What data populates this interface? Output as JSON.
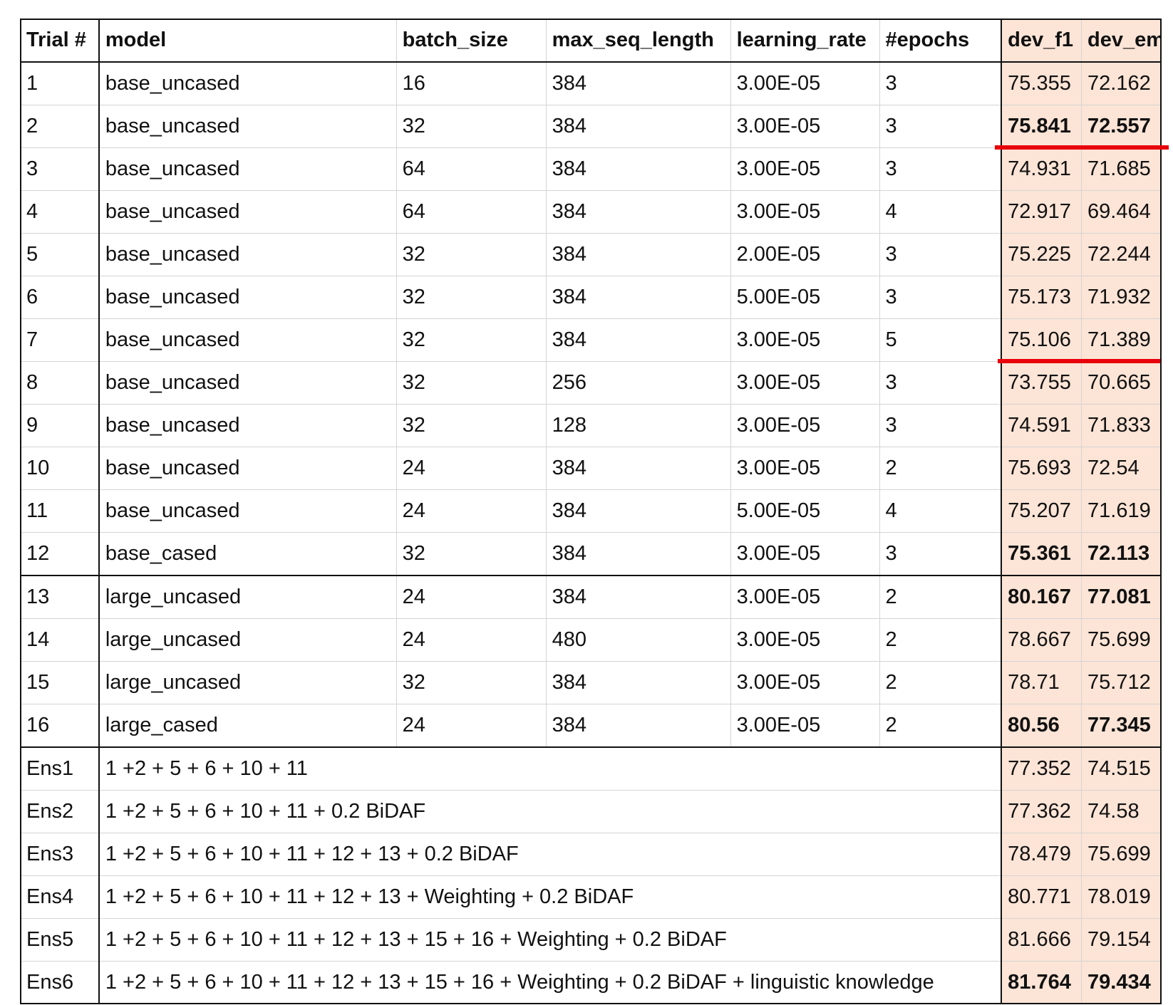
{
  "table": {
    "headers": [
      "Trial #",
      "model",
      "batch_size",
      "max_seq_length",
      "learning_rate",
      "#epochs",
      "dev_f1",
      "dev_em"
    ],
    "rows": [
      {
        "trial": "1",
        "model": "base_uncased",
        "batch_size": "16",
        "max_seq_length": "384",
        "learning_rate": "3.00E-05",
        "epochs": "3",
        "dev_f1": "75.355",
        "dev_em": "72.162",
        "bold": false
      },
      {
        "trial": "2",
        "model": "base_uncased",
        "batch_size": "32",
        "max_seq_length": "384",
        "learning_rate": "3.00E-05",
        "epochs": "3",
        "dev_f1": "75.841",
        "dev_em": "72.557",
        "bold": true
      },
      {
        "trial": "3",
        "model": "base_uncased",
        "batch_size": "64",
        "max_seq_length": "384",
        "learning_rate": "3.00E-05",
        "epochs": "3",
        "dev_f1": "74.931",
        "dev_em": "71.685",
        "bold": false
      },
      {
        "trial": "4",
        "model": "base_uncased",
        "batch_size": "64",
        "max_seq_length": "384",
        "learning_rate": "3.00E-05",
        "epochs": "4",
        "dev_f1": "72.917",
        "dev_em": "69.464",
        "bold": false
      },
      {
        "trial": "5",
        "model": "base_uncased",
        "batch_size": "32",
        "max_seq_length": "384",
        "learning_rate": "2.00E-05",
        "epochs": "3",
        "dev_f1": "75.225",
        "dev_em": "72.244",
        "bold": false
      },
      {
        "trial": "6",
        "model": "base_uncased",
        "batch_size": "32",
        "max_seq_length": "384",
        "learning_rate": "5.00E-05",
        "epochs": "3",
        "dev_f1": "75.173",
        "dev_em": "71.932",
        "bold": false
      },
      {
        "trial": "7",
        "model": "base_uncased",
        "batch_size": "32",
        "max_seq_length": "384",
        "learning_rate": "3.00E-05",
        "epochs": "5",
        "dev_f1": "75.106",
        "dev_em": "71.389",
        "bold": false
      },
      {
        "trial": "8",
        "model": "base_uncased",
        "batch_size": "32",
        "max_seq_length": "256",
        "learning_rate": "3.00E-05",
        "epochs": "3",
        "dev_f1": "73.755",
        "dev_em": "70.665",
        "bold": false
      },
      {
        "trial": "9",
        "model": "base_uncased",
        "batch_size": "32",
        "max_seq_length": "128",
        "learning_rate": "3.00E-05",
        "epochs": "3",
        "dev_f1": "74.591",
        "dev_em": "71.833",
        "bold": false
      },
      {
        "trial": "10",
        "model": "base_uncased",
        "batch_size": "24",
        "max_seq_length": "384",
        "learning_rate": "3.00E-05",
        "epochs": "2",
        "dev_f1": "75.693",
        "dev_em": "72.54",
        "bold": false
      },
      {
        "trial": "11",
        "model": "base_uncased",
        "batch_size": "24",
        "max_seq_length": "384",
        "learning_rate": "5.00E-05",
        "epochs": "4",
        "dev_f1": "75.207",
        "dev_em": "71.619",
        "bold": false
      },
      {
        "trial": "12",
        "model": "base_cased",
        "batch_size": "32",
        "max_seq_length": "384",
        "learning_rate": "3.00E-05",
        "epochs": "3",
        "dev_f1": "75.361",
        "dev_em": "72.113",
        "bold": true
      },
      {
        "trial": "13",
        "model": "large_uncased",
        "batch_size": "24",
        "max_seq_length": "384",
        "learning_rate": "3.00E-05",
        "epochs": "2",
        "dev_f1": "80.167",
        "dev_em": "77.081",
        "bold": true
      },
      {
        "trial": "14",
        "model": "large_uncased",
        "batch_size": "24",
        "max_seq_length": "480",
        "learning_rate": "3.00E-05",
        "epochs": "2",
        "dev_f1": "78.667",
        "dev_em": "75.699",
        "bold": false
      },
      {
        "trial": "15",
        "model": "large_uncased",
        "batch_size": "32",
        "max_seq_length": "384",
        "learning_rate": "3.00E-05",
        "epochs": "2",
        "dev_f1": "78.71",
        "dev_em": "75.712",
        "bold": false
      },
      {
        "trial": "16",
        "model": "large_cased",
        "batch_size": "24",
        "max_seq_length": "384",
        "learning_rate": "3.00E-05",
        "epochs": "2",
        "dev_f1": "80.56",
        "dev_em": "77.345",
        "bold": true
      }
    ],
    "ensembles": [
      {
        "name": "Ens1",
        "composition": "1 +2 + 5 + 6 + 10 + 11",
        "dev_f1": "77.352",
        "dev_em": "74.515",
        "bold": false
      },
      {
        "name": "Ens2",
        "composition": "1 +2 + 5 + 6 + 10 + 11 + 0.2 BiDAF",
        "dev_f1": "77.362",
        "dev_em": "74.58",
        "bold": false
      },
      {
        "name": "Ens3",
        "composition": "1 +2 + 5 + 6 + 10 + 11 + 12 + 13 + 0.2 BiDAF",
        "dev_f1": "78.479",
        "dev_em": "75.699",
        "bold": false
      },
      {
        "name": "Ens4",
        "composition": "1 +2 + 5 + 6 + 10 + 11 + 12 + 13 + Weighting + 0.2 BiDAF",
        "dev_f1": "80.771",
        "dev_em": "78.019",
        "bold": false
      },
      {
        "name": "Ens5",
        "composition": "1 +2 + 5 + 6 + 10 + 11 + 12 + 13 + 15 + 16 + Weighting + 0.2 BiDAF",
        "dev_f1": "81.666",
        "dev_em": "79.154",
        "bold": false
      },
      {
        "name": "Ens6",
        "composition": "1 +2 + 5 + 6 + 10 + 11 + 12 + 13 + 15 + 16 + Weighting + 0.2 BiDAF + linguistic knowledge",
        "dev_f1": "81.764",
        "dev_em": "79.434",
        "bold": true
      }
    ]
  },
  "colors": {
    "highlight_bg": "#fce4d6",
    "annotation_red": "#e8000b"
  }
}
